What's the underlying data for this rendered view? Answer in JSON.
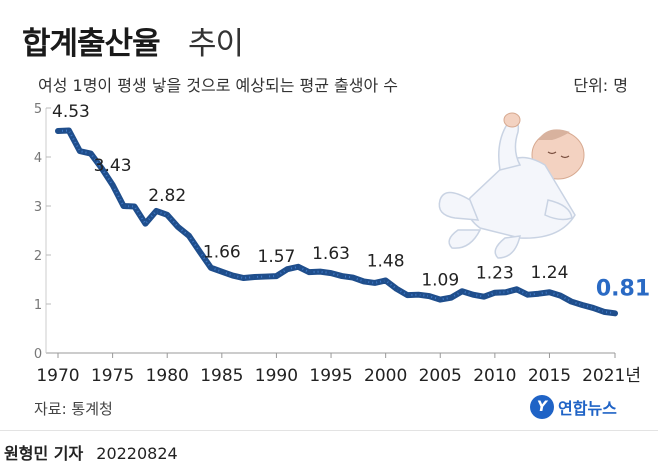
{
  "header": {
    "title_bold": "합계출산율",
    "title_light": "추이",
    "subtitle": "여성 1명이 평생 낳을 것으로 예상되는 평균 출생아 수",
    "unit": "단위: 명"
  },
  "footer": {
    "source": "자료: 통계청",
    "logo_mark": "Y",
    "logo_text": "연합뉴스",
    "reporter": "원형민 기자",
    "date": "20220824"
  },
  "illustration": "baby-icon",
  "colors": {
    "line": "#1f4e8c",
    "last_label": "#2a6ac4",
    "axis": "#999999",
    "text": "#222222"
  },
  "chart_data": {
    "type": "line",
    "title": "합계출산율 추이",
    "subtitle": "여성 1명이 평생 낳을 것으로 예상되는 평균 출생아 수",
    "unit": "단위: 명",
    "ylim": [
      0,
      5
    ],
    "y_ticks": [
      0,
      1,
      2,
      3,
      4,
      5
    ],
    "x_ticks": [
      1970,
      1975,
      1980,
      1985,
      1990,
      1995,
      2000,
      2005,
      2010,
      2015,
      2021
    ],
    "x_tick_labels": [
      "1970",
      "1975",
      "1980",
      "1985",
      "1990",
      "1995",
      "2000",
      "2005",
      "2010",
      "2015",
      "2021년"
    ],
    "grid": false,
    "series": [
      {
        "x": [
          1970,
          1971,
          1972,
          1973,
          1974,
          1975,
          1976,
          1977,
          1978,
          1979,
          1980,
          1981,
          1982,
          1983,
          1984,
          1985,
          1986,
          1987,
          1988,
          1989,
          1990,
          1991,
          1992,
          1993,
          1994,
          1995,
          1996,
          1997,
          1998,
          1999,
          2000,
          2001,
          2002,
          2003,
          2004,
          2005,
          2006,
          2007,
          2008,
          2009,
          2010,
          2011,
          2012,
          2013,
          2014,
          2015,
          2016,
          2017,
          2018,
          2019,
          2020,
          2021
        ],
        "y": [
          4.53,
          4.54,
          4.12,
          4.07,
          3.77,
          3.43,
          3.0,
          2.99,
          2.64,
          2.9,
          2.82,
          2.57,
          2.39,
          2.06,
          1.74,
          1.66,
          1.58,
          1.53,
          1.55,
          1.56,
          1.57,
          1.71,
          1.76,
          1.65,
          1.66,
          1.63,
          1.57,
          1.54,
          1.46,
          1.43,
          1.48,
          1.31,
          1.18,
          1.19,
          1.16,
          1.09,
          1.13,
          1.26,
          1.19,
          1.15,
          1.23,
          1.24,
          1.3,
          1.19,
          1.21,
          1.24,
          1.17,
          1.05,
          0.98,
          0.92,
          0.84,
          0.81
        ]
      }
    ],
    "annotations": [
      {
        "x": 1970,
        "y": 4.53,
        "label": "4.53"
      },
      {
        "x": 1975,
        "y": 3.43,
        "label": "3.43"
      },
      {
        "x": 1980,
        "y": 2.82,
        "label": "2.82"
      },
      {
        "x": 1985,
        "y": 1.66,
        "label": "1.66"
      },
      {
        "x": 1990,
        "y": 1.57,
        "label": "1.57"
      },
      {
        "x": 1995,
        "y": 1.63,
        "label": "1.63"
      },
      {
        "x": 2000,
        "y": 1.48,
        "label": "1.48"
      },
      {
        "x": 2005,
        "y": 1.09,
        "label": "1.09"
      },
      {
        "x": 2010,
        "y": 1.23,
        "label": "1.23"
      },
      {
        "x": 2015,
        "y": 1.24,
        "label": "1.24"
      },
      {
        "x": 2021,
        "y": 0.81,
        "label": "0.81",
        "highlight": true
      }
    ]
  }
}
